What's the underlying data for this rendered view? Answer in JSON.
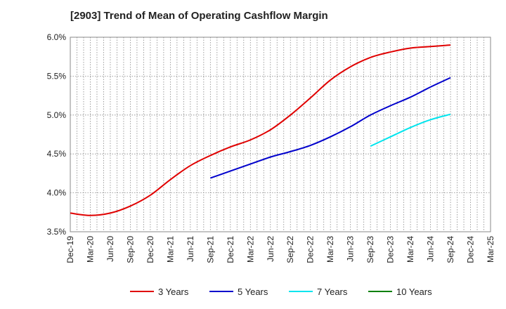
{
  "chart_data": {
    "type": "line",
    "title": "[2903]  Trend of Mean of Operating Cashflow Margin",
    "x_categories": [
      "Dec-19",
      "Mar-20",
      "Jun-20",
      "Sep-20",
      "Dec-20",
      "Mar-21",
      "Jun-21",
      "Sep-21",
      "Dec-21",
      "Mar-22",
      "Jun-22",
      "Sep-22",
      "Dec-22",
      "Mar-23",
      "Jun-23",
      "Sep-23",
      "Dec-23",
      "Mar-24",
      "Jun-24",
      "Sep-24",
      "Dec-24",
      "Mar-25"
    ],
    "ylim": [
      3.5,
      6.0
    ],
    "y_ticks": [
      "6.0%",
      "5.5%",
      "5.0%",
      "4.5%",
      "4.0%",
      "3.5%"
    ],
    "y_tick_values": [
      6.0,
      5.5,
      5.0,
      4.5,
      4.0,
      3.5
    ],
    "grid": true,
    "legend_position": "bottom",
    "series": [
      {
        "name": "3 Years",
        "color": "#e00000",
        "x": [
          "Dec-19",
          "Mar-20",
          "Jun-20",
          "Sep-20",
          "Dec-20",
          "Mar-21",
          "Jun-21",
          "Sep-21",
          "Dec-21",
          "Mar-22",
          "Jun-22",
          "Sep-22",
          "Dec-22",
          "Mar-23",
          "Jun-23",
          "Sep-23",
          "Dec-23",
          "Mar-24",
          "Jun-24",
          "Sep-24"
        ],
        "values": [
          3.74,
          3.71,
          3.74,
          3.83,
          3.97,
          4.17,
          4.35,
          4.48,
          4.59,
          4.68,
          4.81,
          5.0,
          5.22,
          5.45,
          5.62,
          5.74,
          5.81,
          5.86,
          5.88,
          5.9
        ]
      },
      {
        "name": "5 Years",
        "color": "#0000cc",
        "x": [
          "Sep-21",
          "Dec-21",
          "Mar-22",
          "Jun-22",
          "Sep-22",
          "Dec-22",
          "Mar-23",
          "Jun-23",
          "Sep-23",
          "Dec-23",
          "Mar-24",
          "Jun-24",
          "Sep-24"
        ],
        "values": [
          4.19,
          4.28,
          4.37,
          4.46,
          4.53,
          4.61,
          4.72,
          4.85,
          5.0,
          5.12,
          5.23,
          5.36,
          5.48
        ]
      },
      {
        "name": "7 Years",
        "color": "#00e5ee",
        "x": [
          "Sep-23",
          "Dec-23",
          "Mar-24",
          "Jun-24",
          "Sep-24"
        ],
        "values": [
          4.6,
          4.72,
          4.84,
          4.94,
          5.01
        ]
      },
      {
        "name": "10 Years",
        "color": "#008000",
        "x": [],
        "values": []
      }
    ]
  }
}
